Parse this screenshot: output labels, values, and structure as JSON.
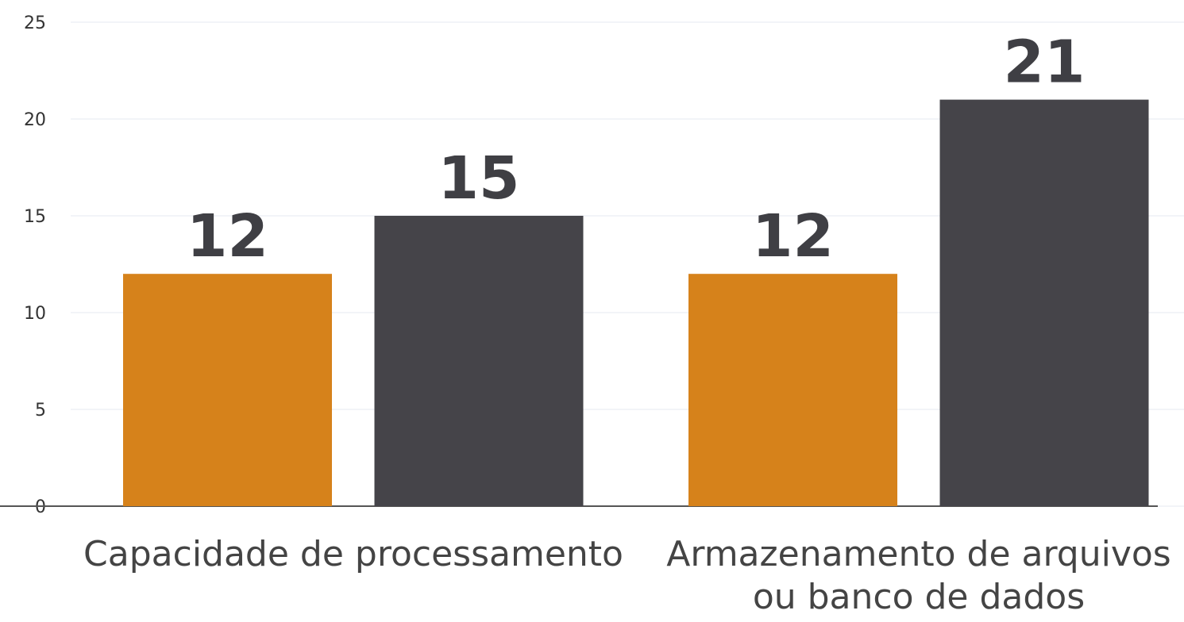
{
  "chart_data": {
    "type": "bar",
    "categories": [
      "Capacidade de processamento",
      "Armazenamento de arquivos ou banco de dados"
    ],
    "series": [
      {
        "color": "#d6821b",
        "values": [
          12,
          12
        ]
      },
      {
        "color": "#454449",
        "values": [
          15,
          21
        ]
      }
    ],
    "ylim": [
      0,
      25
    ],
    "yticks": [
      0,
      5,
      10,
      15,
      20,
      25
    ],
    "grid": true
  }
}
